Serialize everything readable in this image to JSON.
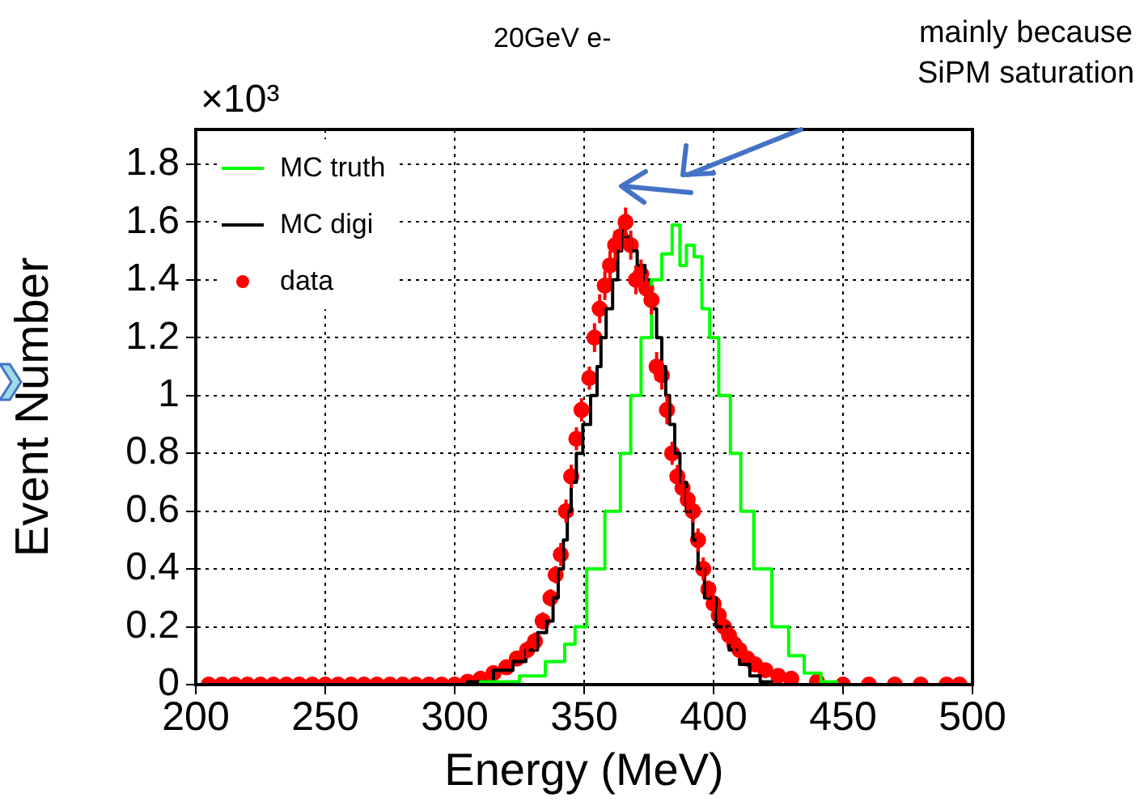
{
  "chart_data": {
    "type": "step",
    "title": "20GeV e-",
    "xlabel": "Energy (MeV)",
    "ylabel": "Event Number",
    "annotations": [
      "×10³",
      "mainly because SiPM saturation"
    ],
    "xlim": [
      200,
      500
    ],
    "xticks": [
      200,
      250,
      300,
      350,
      400,
      450,
      500
    ],
    "ylim": [
      0,
      1.92
    ],
    "yticks": [
      0,
      0.2,
      0.4,
      0.6,
      0.8,
      1,
      1.2,
      1.4,
      1.6,
      1.8
    ],
    "grid": true,
    "legend": "top left",
    "series": [
      {
        "name": "MC truth",
        "color": "#00ff00",
        "x": [
          300,
          320,
          330,
          340,
          345,
          348,
          354,
          362,
          366,
          370,
          374,
          378,
          382,
          386,
          388,
          391,
          394,
          397,
          400,
          404,
          409,
          412,
          419,
          426,
          432,
          438,
          445,
          450
        ],
        "values": [
          0,
          0.01,
          0.03,
          0.08,
          0.14,
          0.2,
          0.4,
          0.6,
          0.8,
          1.0,
          1.2,
          1.4,
          1.49,
          1.59,
          1.45,
          1.52,
          1.48,
          1.3,
          1.2,
          1.0,
          0.8,
          0.6,
          0.4,
          0.2,
          0.1,
          0.04,
          0.01,
          0
        ]
      },
      {
        "name": "MC digi",
        "color": "#000000",
        "x": [
          300,
          310,
          320,
          325,
          330,
          334,
          337,
          339,
          341,
          343,
          344,
          346,
          348,
          351,
          354,
          356,
          357,
          360,
          362,
          364,
          365,
          367,
          369,
          372,
          375,
          377,
          379,
          381,
          382,
          384,
          386,
          388,
          391,
          393,
          395,
          398,
          404,
          408,
          412,
          416,
          420,
          425
        ],
        "values": [
          0,
          0.01,
          0.05,
          0.08,
          0.12,
          0.18,
          0.22,
          0.3,
          0.4,
          0.5,
          0.6,
          0.7,
          0.8,
          0.9,
          1.0,
          1.1,
          1.2,
          1.3,
          1.4,
          1.5,
          1.57,
          1.55,
          1.5,
          1.45,
          1.4,
          1.3,
          1.2,
          1.1,
          1.0,
          0.9,
          0.8,
          0.7,
          0.6,
          0.5,
          0.4,
          0.3,
          0.2,
          0.12,
          0.07,
          0.03,
          0.01,
          0
        ]
      },
      {
        "name": "data",
        "type": "scatter",
        "color": "#ff0000",
        "marker": "circle",
        "x": [
          205,
          210,
          215,
          220,
          225,
          230,
          235,
          240,
          245,
          250,
          255,
          260,
          265,
          270,
          275,
          280,
          285,
          290,
          295,
          300,
          305,
          310,
          315,
          320,
          324,
          328,
          331,
          334,
          337,
          339,
          341,
          343,
          345,
          347,
          349,
          352,
          354,
          356,
          358,
          360,
          362,
          364,
          366,
          368,
          370,
          372,
          374,
          376,
          378,
          380,
          382,
          384,
          386,
          388,
          390,
          392,
          394,
          396,
          398,
          400,
          402,
          404,
          406,
          408,
          410,
          413,
          416,
          420,
          425,
          430,
          440,
          450,
          460,
          470,
          480,
          490,
          495
        ],
        "values": [
          0,
          0,
          0,
          0,
          0,
          0,
          0,
          0,
          0,
          0,
          0,
          0,
          0,
          0,
          0,
          0,
          0,
          0,
          0,
          0,
          0.01,
          0.02,
          0.04,
          0.06,
          0.09,
          0.12,
          0.15,
          0.22,
          0.3,
          0.38,
          0.45,
          0.6,
          0.72,
          0.85,
          0.95,
          1.06,
          1.2,
          1.3,
          1.38,
          1.45,
          1.52,
          1.55,
          1.6,
          1.52,
          1.4,
          1.42,
          1.37,
          1.33,
          1.1,
          1.07,
          0.95,
          0.8,
          0.72,
          0.68,
          0.64,
          0.6,
          0.5,
          0.4,
          0.33,
          0.28,
          0.24,
          0.2,
          0.17,
          0.14,
          0.12,
          0.09,
          0.07,
          0.05,
          0.03,
          0.02,
          0.01,
          0,
          0,
          0,
          0,
          0,
          0
        ],
        "errors": [
          null,
          null,
          null,
          null,
          null,
          null,
          null,
          null,
          null,
          null,
          null,
          null,
          null,
          null,
          null,
          null,
          null,
          null,
          null,
          null,
          null,
          null,
          null,
          null,
          null,
          0.03,
          0.03,
          0.03,
          0.03,
          0.03,
          0.04,
          0.04,
          0.04,
          0.04,
          0.04,
          0.04,
          0.05,
          0.05,
          0.05,
          0.05,
          0.05,
          0.05,
          0.05,
          0.05,
          0.05,
          0.05,
          0.05,
          0.05,
          0.05,
          0.05,
          0.05,
          0.04,
          0.04,
          0.04,
          0.04,
          0.04,
          0.04,
          0.04,
          0.03,
          0.03,
          0.03,
          0.03,
          0.03,
          0.03,
          0.03,
          null,
          null,
          null,
          null,
          null,
          null,
          null,
          null,
          null,
          null,
          null,
          null
        ]
      }
    ]
  }
}
